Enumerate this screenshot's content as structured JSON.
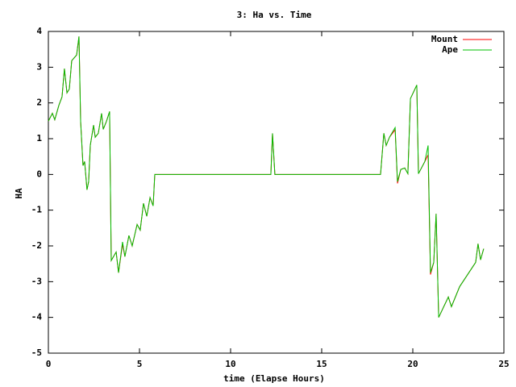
{
  "chart_data": {
    "type": "line",
    "title": "3: Ha vs. Time",
    "x_label": "time (Elapse Hours)",
    "y_label": "HA",
    "x": [
      0,
      0.22,
      0.35,
      0.58,
      0.75,
      0.88,
      1.02,
      1.15,
      1.28,
      1.55,
      1.68,
      1.77,
      1.9,
      1.99,
      2.12,
      2.21,
      2.3,
      2.48,
      2.57,
      2.74,
      2.92,
      3.01,
      3.19,
      3.36,
      3.45,
      3.72,
      3.85,
      4.07,
      4.2,
      4.42,
      4.6,
      4.87,
      5.04,
      5.22,
      5.4,
      5.58,
      5.75,
      5.84,
      12.21,
      12.3,
      12.43,
      18.23,
      18.41,
      18.54,
      18.72,
      19.03,
      19.16,
      19.34,
      19.56,
      19.73,
      19.87,
      20.22,
      20.31,
      20.66,
      20.84,
      20.97,
      21.15,
      21.28,
      21.42,
      21.95,
      22.12,
      22.57,
      23.45,
      23.58,
      23.72,
      23.89
    ],
    "series": [
      {
        "name": "Mount",
        "color": "#ff0000",
        "values": [
          1.49,
          1.71,
          1.53,
          1.94,
          2.17,
          2.96,
          2.28,
          2.39,
          3.18,
          3.34,
          3.86,
          1.49,
          0.25,
          0.36,
          -0.43,
          -0.2,
          0.81,
          1.38,
          1.04,
          1.15,
          1.71,
          1.26,
          1.49,
          1.76,
          -2.41,
          -2.17,
          -2.75,
          -1.95,
          -2.3,
          -1.71,
          -2.0,
          -1.4,
          -1.56,
          -0.81,
          -1.17,
          -0.65,
          -0.88,
          0,
          0,
          1.15,
          0,
          0,
          1.15,
          0.81,
          1.04,
          1.25,
          -0.25,
          0.14,
          0.18,
          0.02,
          2.12,
          2.5,
          0.02,
          0.36,
          0.55,
          -2.8,
          -2.46,
          -1.1,
          -4.0,
          -3.43,
          -3.7,
          -3.14,
          -2.46,
          -1.94,
          -2.39,
          -2.08
        ]
      },
      {
        "name": "Ape",
        "color": "#00c000",
        "values": [
          1.49,
          1.71,
          1.53,
          1.94,
          2.17,
          2.96,
          2.28,
          2.39,
          3.18,
          3.34,
          3.86,
          1.49,
          0.25,
          0.36,
          -0.43,
          -0.2,
          0.81,
          1.38,
          1.04,
          1.15,
          1.71,
          1.26,
          1.49,
          1.76,
          -2.41,
          -2.17,
          -2.75,
          -1.89,
          -2.3,
          -1.71,
          -2.0,
          -1.4,
          -1.56,
          -0.81,
          -1.17,
          -0.65,
          -0.88,
          0,
          0,
          1.15,
          0,
          0,
          1.15,
          0.81,
          1.04,
          1.31,
          -0.2,
          0.14,
          0.18,
          0.02,
          2.12,
          2.5,
          0.02,
          0.36,
          0.81,
          -2.75,
          -2.46,
          -1.1,
          -4.0,
          -3.43,
          -3.7,
          -3.14,
          -2.46,
          -1.94,
          -2.39,
          -2.08
        ]
      }
    ],
    "xlim": [
      0,
      25
    ],
    "xticks": [
      0,
      5,
      10,
      15,
      20,
      25
    ],
    "ylim": [
      -5,
      4
    ],
    "yticks": [
      -5,
      -4,
      -3,
      -2,
      -1,
      0,
      1,
      2,
      3,
      4
    ],
    "legend": "top-right"
  }
}
